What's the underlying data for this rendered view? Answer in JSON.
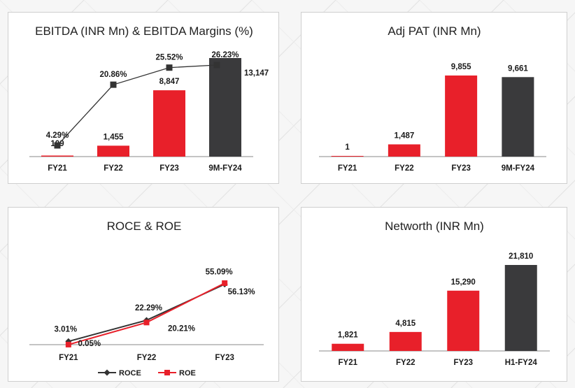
{
  "colors": {
    "red": "#e8202a",
    "dark": "#3a3a3c",
    "line_dark": "#333333",
    "axis": "#888888"
  },
  "chart_data": [
    {
      "id": "ebitda",
      "type": "bar",
      "title": "EBITDA (INR Mn) & EBITDA Margins (%)",
      "categories": [
        "FY21",
        "FY22",
        "FY23",
        "9M-FY24"
      ],
      "series": [
        {
          "values": [
            109,
            1455,
            8847,
            13147
          ],
          "value_labels": [
            "109",
            "1,455",
            "8,847",
            "13,147"
          ],
          "colors": [
            "red",
            "red",
            "red",
            "dark"
          ]
        },
        {
          "type": "line",
          "values": [
            4.29,
            20.86,
            25.52,
            26.23
          ],
          "value_labels": [
            "4.29%",
            "20.86%",
            "25.52%",
            "26.23%"
          ]
        }
      ]
    },
    {
      "id": "pat",
      "type": "bar",
      "title": "Adj PAT (INR Mn)",
      "categories": [
        "FY21",
        "FY22",
        "FY23",
        "9M-FY24"
      ],
      "values": [
        1,
        1487,
        9855,
        9661
      ],
      "value_labels": [
        "1",
        "1,487",
        "9,855",
        "9,661"
      ],
      "colors": [
        "red",
        "red",
        "red",
        "dark"
      ]
    },
    {
      "id": "roce",
      "type": "line",
      "title": "ROCE & ROE",
      "categories": [
        "FY21",
        "FY22",
        "FY23"
      ],
      "series": [
        {
          "name": "ROCE",
          "values": [
            3.01,
            22.29,
            55.09
          ],
          "value_labels": [
            "3.01%",
            "22.29%",
            "55.09%"
          ]
        },
        {
          "name": "ROE",
          "values": [
            0.05,
            20.21,
            56.13
          ],
          "value_labels": [
            "0.05%",
            "20.21%",
            "56.13%"
          ]
        }
      ],
      "legend": "bottom"
    },
    {
      "id": "networth",
      "type": "bar",
      "title": "Networth (INR Mn)",
      "categories": [
        "FY21",
        "FY22",
        "FY23",
        "H1-FY24"
      ],
      "values": [
        1821,
        4815,
        15290,
        21810
      ],
      "value_labels": [
        "1,821",
        "4,815",
        "15,290",
        "21,810"
      ],
      "colors": [
        "red",
        "red",
        "red",
        "dark"
      ]
    }
  ]
}
